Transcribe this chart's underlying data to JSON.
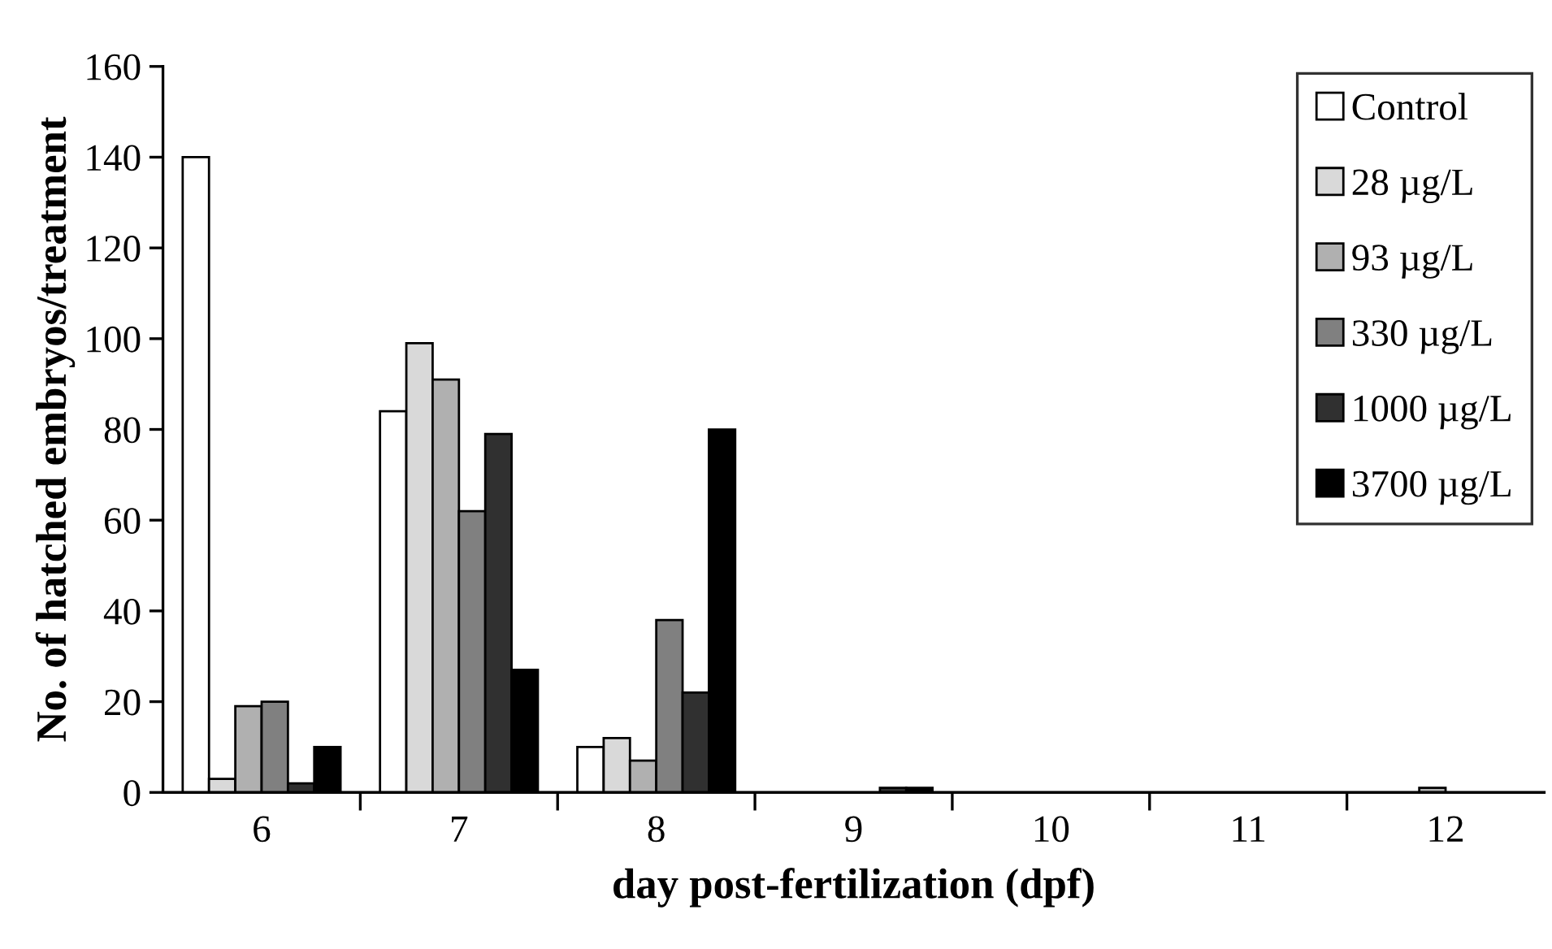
{
  "chart_data": {
    "type": "bar",
    "xlabel": "day post-fertilization (dpf)",
    "ylabel": "No. of hatched embryos/treatment",
    "categories": [
      "6",
      "7",
      "8",
      "9",
      "10",
      "11",
      "12"
    ],
    "series": [
      {
        "name": "Control",
        "color": "#ffffff",
        "values": [
          140,
          84,
          10,
          null,
          null,
          null,
          null
        ]
      },
      {
        "name": "28 µg/L",
        "color": "#d9d9d9",
        "values": [
          3,
          99,
          12,
          null,
          null,
          null,
          null
        ]
      },
      {
        "name": "93 µg/L",
        "color": "#b0b0b0",
        "values": [
          19,
          91,
          7,
          null,
          null,
          null,
          1
        ]
      },
      {
        "name": "330 µg/L",
        "color": "#808080",
        "values": [
          20,
          62,
          38,
          null,
          null,
          null,
          null
        ]
      },
      {
        "name": "1000 µg/L",
        "color": "#303030",
        "values": [
          2,
          79,
          22,
          1,
          null,
          null,
          null
        ]
      },
      {
        "name": "3700 µg/L",
        "color": "#000000",
        "values": [
          10,
          27,
          80,
          1,
          null,
          null,
          null
        ]
      }
    ],
    "ylim": [
      0,
      160
    ],
    "yticks": [
      0,
      20,
      40,
      60,
      80,
      100,
      120,
      140,
      160
    ],
    "grid": false,
    "legend": "right"
  }
}
